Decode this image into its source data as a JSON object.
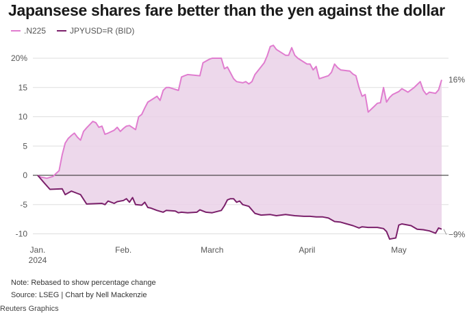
{
  "title": "Japansese shares fare better than the yen against the dollar",
  "note": "Note: Rebased to show percentage change",
  "source": "Source: LSEG | Chart by Nell Mackenzie",
  "brand": "Reuters Graphics",
  "colors": {
    "n225": "#e07ccf",
    "jpy": "#7a1f6a",
    "fill": "#ead1e7",
    "zero": "#222222",
    "grid": "#dddddd"
  },
  "chart_data": {
    "type": "line",
    "title": "Japansese shares fare better than the yen against the dollar",
    "xlabel": "",
    "ylabel": "",
    "ylim": [
      -11,
      22
    ],
    "yticks": [
      20,
      15,
      10,
      5,
      0,
      -5,
      -10
    ],
    "ytick_labels": [
      "20%",
      "15",
      "10",
      "5",
      "0",
      "-5",
      "-10"
    ],
    "xticks": [
      {
        "label": "Jan.",
        "sublabel": "2024",
        "date": "2024-01-04"
      },
      {
        "label": "Feb.",
        "sublabel": "",
        "date": "2024-02-01"
      },
      {
        "label": "March",
        "sublabel": "",
        "date": "2024-03-01"
      },
      {
        "label": "April",
        "sublabel": "",
        "date": "2024-04-01"
      },
      {
        "label": "May",
        "sublabel": "",
        "date": "2024-05-01"
      }
    ],
    "x_domain": [
      "2024-01-04",
      "2024-05-15"
    ],
    "grid": true,
    "legend": "top-left",
    "fill_between": true,
    "series": [
      {
        "name": ".N225",
        "end_label": "16%",
        "points": [
          [
            "2024-01-04",
            0
          ],
          [
            "2024-01-05",
            -0.3
          ],
          [
            "2024-01-06",
            -0.4
          ],
          [
            "2024-01-07",
            -0.5
          ],
          [
            "2024-01-09",
            -0.2
          ],
          [
            "2024-01-10",
            0.3
          ],
          [
            "2024-01-11",
            0.8
          ],
          [
            "2024-01-12",
            3.5
          ],
          [
            "2024-01-13",
            5.5
          ],
          [
            "2024-01-14",
            6.3
          ],
          [
            "2024-01-15",
            6.8
          ],
          [
            "2024-01-16",
            7.2
          ],
          [
            "2024-01-17",
            6.5
          ],
          [
            "2024-01-18",
            6.0
          ],
          [
            "2024-01-19",
            7.5
          ],
          [
            "2024-01-20",
            8.1
          ],
          [
            "2024-01-22",
            9.2
          ],
          [
            "2024-01-23",
            9.0
          ],
          [
            "2024-01-24",
            8.2
          ],
          [
            "2024-01-25",
            8.4
          ],
          [
            "2024-01-26",
            7.0
          ],
          [
            "2024-01-27",
            7.2
          ],
          [
            "2024-01-29",
            7.7
          ],
          [
            "2024-01-30",
            8.2
          ],
          [
            "2024-01-31",
            7.5
          ],
          [
            "2024-02-01",
            8.0
          ],
          [
            "2024-02-02",
            8.4
          ],
          [
            "2024-02-03",
            8.5
          ],
          [
            "2024-02-05",
            7.8
          ],
          [
            "2024-02-06",
            10.0
          ],
          [
            "2024-02-07",
            10.4
          ],
          [
            "2024-02-08",
            11.5
          ],
          [
            "2024-02-09",
            12.5
          ],
          [
            "2024-02-12",
            13.5
          ],
          [
            "2024-02-13",
            12.8
          ],
          [
            "2024-02-14",
            14.5
          ],
          [
            "2024-02-15",
            15.0
          ],
          [
            "2024-02-16",
            15.0
          ],
          [
            "2024-02-19",
            14.5
          ],
          [
            "2024-02-20",
            16.8
          ],
          [
            "2024-02-21",
            17.0
          ],
          [
            "2024-02-22",
            17.2
          ],
          [
            "2024-02-26",
            17.0
          ],
          [
            "2024-02-27",
            19.2
          ],
          [
            "2024-02-28",
            19.5
          ],
          [
            "2024-02-29",
            19.8
          ],
          [
            "2024-03-01",
            20.0
          ],
          [
            "2024-03-04",
            20.0
          ],
          [
            "2024-03-05",
            18.2
          ],
          [
            "2024-03-06",
            18.5
          ],
          [
            "2024-03-07",
            17.5
          ],
          [
            "2024-03-08",
            16.5
          ],
          [
            "2024-03-09",
            16.0
          ],
          [
            "2024-03-11",
            15.8
          ],
          [
            "2024-03-12",
            16.0
          ],
          [
            "2024-03-13",
            15.6
          ],
          [
            "2024-03-14",
            16.0
          ],
          [
            "2024-03-15",
            17.2
          ],
          [
            "2024-03-18",
            19.2
          ],
          [
            "2024-03-19",
            20.4
          ],
          [
            "2024-03-20",
            22.0
          ],
          [
            "2024-03-21",
            22.2
          ],
          [
            "2024-03-22",
            21.5
          ],
          [
            "2024-03-25",
            20.5
          ],
          [
            "2024-03-26",
            20.5
          ],
          [
            "2024-03-27",
            21.8
          ],
          [
            "2024-03-28",
            20.5
          ],
          [
            "2024-03-29",
            20.0
          ],
          [
            "2024-04-01",
            19.0
          ],
          [
            "2024-04-02",
            19.0
          ],
          [
            "2024-04-03",
            18.0
          ],
          [
            "2024-04-04",
            18.6
          ],
          [
            "2024-04-05",
            16.5
          ],
          [
            "2024-04-08",
            17.0
          ],
          [
            "2024-04-09",
            17.6
          ],
          [
            "2024-04-10",
            19.0
          ],
          [
            "2024-04-11",
            18.4
          ],
          [
            "2024-04-12",
            18.0
          ],
          [
            "2024-04-15",
            17.8
          ],
          [
            "2024-04-16",
            17.3
          ],
          [
            "2024-04-17",
            17.0
          ],
          [
            "2024-04-18",
            15.0
          ],
          [
            "2024-04-19",
            13.5
          ],
          [
            "2024-04-20",
            13.8
          ],
          [
            "2024-04-21",
            10.8
          ],
          [
            "2024-04-22",
            11.3
          ],
          [
            "2024-04-23",
            11.8
          ],
          [
            "2024-04-24",
            12.3
          ],
          [
            "2024-04-25",
            12.4
          ],
          [
            "2024-04-26",
            15.0
          ],
          [
            "2024-04-27",
            12.5
          ],
          [
            "2024-04-28",
            13.3
          ],
          [
            "2024-04-29",
            13.8
          ],
          [
            "2024-05-01",
            14.3
          ],
          [
            "2024-05-02",
            14.8
          ],
          [
            "2024-05-03",
            14.5
          ],
          [
            "2024-05-04",
            14.2
          ],
          [
            "2024-05-06",
            15.0
          ],
          [
            "2024-05-07",
            15.5
          ],
          [
            "2024-05-08",
            16.0
          ],
          [
            "2024-05-09",
            14.5
          ],
          [
            "2024-05-10",
            13.8
          ],
          [
            "2024-05-11",
            14.2
          ],
          [
            "2024-05-13",
            14.0
          ],
          [
            "2024-05-14",
            14.6
          ],
          [
            "2024-05-15",
            16.3
          ]
        ]
      },
      {
        "name": "JPYUSD=R (BID)",
        "end_label": "−9%",
        "points": [
          [
            "2024-01-04",
            0
          ],
          [
            "2024-01-06",
            -1.2
          ],
          [
            "2024-01-08",
            -2.4
          ],
          [
            "2024-01-12",
            -2.3
          ],
          [
            "2024-01-13",
            -3.3
          ],
          [
            "2024-01-15",
            -2.7
          ],
          [
            "2024-01-17",
            -3.1
          ],
          [
            "2024-01-18",
            -3.3
          ],
          [
            "2024-01-20",
            -4.9
          ],
          [
            "2024-01-25",
            -4.8
          ],
          [
            "2024-01-26",
            -5.0
          ],
          [
            "2024-01-27",
            -4.4
          ],
          [
            "2024-01-28",
            -4.6
          ],
          [
            "2024-01-29",
            -4.8
          ],
          [
            "2024-01-30",
            -4.5
          ],
          [
            "2024-02-01",
            -4.3
          ],
          [
            "2024-02-02",
            -4.0
          ],
          [
            "2024-02-03",
            -4.6
          ],
          [
            "2024-02-04",
            -3.8
          ],
          [
            "2024-02-05",
            -5.0
          ],
          [
            "2024-02-07",
            -5.1
          ],
          [
            "2024-02-08",
            -4.6
          ],
          [
            "2024-02-09",
            -5.5
          ],
          [
            "2024-02-10",
            -5.6
          ],
          [
            "2024-02-12",
            -6.0
          ],
          [
            "2024-02-14",
            -6.3
          ],
          [
            "2024-02-15",
            -6.0
          ],
          [
            "2024-02-18",
            -6.1
          ],
          [
            "2024-02-19",
            -6.4
          ],
          [
            "2024-02-20",
            -6.3
          ],
          [
            "2024-02-22",
            -6.4
          ],
          [
            "2024-02-25",
            -6.3
          ],
          [
            "2024-02-26",
            -5.9
          ],
          [
            "2024-02-27",
            -6.1
          ],
          [
            "2024-02-28",
            -6.3
          ],
          [
            "2024-03-01",
            -6.4
          ],
          [
            "2024-03-04",
            -6.0
          ],
          [
            "2024-03-05",
            -5.2
          ],
          [
            "2024-03-06",
            -4.2
          ],
          [
            "2024-03-07",
            -4.0
          ],
          [
            "2024-03-08",
            -4.0
          ],
          [
            "2024-03-09",
            -4.6
          ],
          [
            "2024-03-10",
            -4.4
          ],
          [
            "2024-03-11",
            -5.0
          ],
          [
            "2024-03-13",
            -5.3
          ],
          [
            "2024-03-15",
            -6.5
          ],
          [
            "2024-03-17",
            -6.8
          ],
          [
            "2024-03-20",
            -6.7
          ],
          [
            "2024-03-22",
            -6.9
          ],
          [
            "2024-03-25",
            -6.7
          ],
          [
            "2024-03-28",
            -6.9
          ],
          [
            "2024-03-31",
            -7.0
          ],
          [
            "2024-04-02",
            -7.0
          ],
          [
            "2024-04-04",
            -7.1
          ],
          [
            "2024-04-06",
            -7.1
          ],
          [
            "2024-04-08",
            -7.3
          ],
          [
            "2024-04-10",
            -7.9
          ],
          [
            "2024-04-12",
            -8.0
          ],
          [
            "2024-04-14",
            -8.3
          ],
          [
            "2024-04-16",
            -8.6
          ],
          [
            "2024-04-18",
            -9.0
          ],
          [
            "2024-04-19",
            -8.8
          ],
          [
            "2024-04-21",
            -8.9
          ],
          [
            "2024-04-24",
            -8.9
          ],
          [
            "2024-04-26",
            -9.1
          ],
          [
            "2024-04-27",
            -9.6
          ],
          [
            "2024-04-28",
            -10.9
          ],
          [
            "2024-04-29",
            -10.8
          ],
          [
            "2024-04-30",
            -10.7
          ],
          [
            "2024-05-01",
            -8.5
          ],
          [
            "2024-05-02",
            -8.3
          ],
          [
            "2024-05-05",
            -8.6
          ],
          [
            "2024-05-07",
            -9.2
          ],
          [
            "2024-05-09",
            -9.3
          ],
          [
            "2024-05-11",
            -9.5
          ],
          [
            "2024-05-13",
            -9.9
          ],
          [
            "2024-05-14",
            -9.0
          ],
          [
            "2024-05-15",
            -9.2
          ]
        ]
      }
    ]
  }
}
